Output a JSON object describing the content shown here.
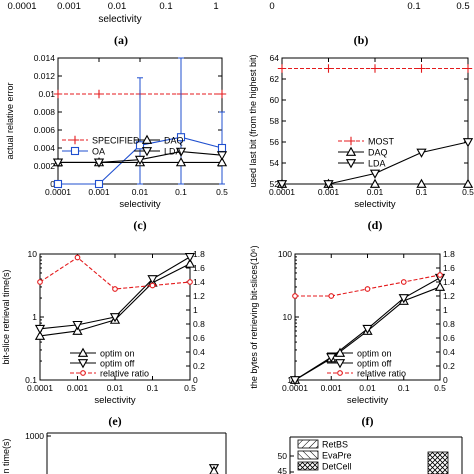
{
  "figure": {
    "top_strip": {
      "left_ticks": [
        "0.0001",
        "0.001",
        "0.01",
        "0.1",
        "1"
      ],
      "left_xlabel": "selectivity",
      "left_caption": "(a)",
      "right_ticks": [
        "0",
        "0.1",
        "0.5"
      ],
      "right_caption": "(b)"
    }
  },
  "chart_data": [
    {
      "id": "c",
      "type": "line",
      "caption": "(c)",
      "xlabel": "selectivity",
      "ylabel": "actual relative error",
      "categories": [
        "0.0001",
        "0.001",
        "0.01",
        "0.1",
        "0.5"
      ],
      "ylim": [
        0,
        0.014
      ],
      "yticks": [
        "0",
        "0.002",
        "0.004",
        "0.006",
        "0.008",
        "0.01",
        "0.012",
        "0.014"
      ],
      "legend_position": "center",
      "series": [
        {
          "name": "SPECIFIED",
          "values": [
            0.01,
            0.01,
            0.01,
            0.01,
            0.01
          ],
          "color": "#e41a1c",
          "dash": "dashed",
          "marker": "plus"
        },
        {
          "name": "OA",
          "values": [
            0.0,
            0.0,
            0.0043,
            0.0052,
            0.004
          ],
          "error": [
            0,
            0,
            0.0075,
            0.009,
            0.004
          ],
          "color": "#1f4fcf",
          "marker": "square"
        },
        {
          "name": "DAQ",
          "values": [
            0.0024,
            0.0024,
            0.0024,
            0.0024,
            0.0024
          ],
          "color": "#000000",
          "marker": "triangle-up"
        },
        {
          "name": "LDA",
          "values": [
            0.0024,
            0.0024,
            0.0027,
            0.0036,
            0.0032
          ],
          "color": "#000000",
          "marker": "triangle-down"
        }
      ]
    },
    {
      "id": "d",
      "type": "line",
      "caption": "(d)",
      "xlabel": "selectivity",
      "ylabel": "used last bit (from the highest bit)",
      "categories": [
        "0.0001",
        "0.001",
        "0.01",
        "0.1",
        "0.5"
      ],
      "ylim": [
        52,
        64
      ],
      "yticks": [
        "52",
        "54",
        "56",
        "58",
        "60",
        "62",
        "64"
      ],
      "legend_position": "center",
      "series": [
        {
          "name": "MOST",
          "values": [
            63,
            63,
            63,
            63,
            63
          ],
          "color": "#e41a1c",
          "dash": "dashed",
          "marker": "plus"
        },
        {
          "name": "DAQ",
          "values": [
            52,
            52,
            52,
            52,
            52
          ],
          "color": "#000000",
          "marker": "triangle-up"
        },
        {
          "name": "LDA",
          "values": [
            52,
            52,
            53,
            55,
            56
          ],
          "color": "#000000",
          "marker": "triangle-down"
        }
      ]
    },
    {
      "id": "e",
      "type": "line",
      "caption": "(e)",
      "xlabel": "selectivity",
      "ylabel": "bit-slice retrieval time(s)",
      "categories": [
        "0.0001",
        "0.001",
        "0.01",
        "0.1",
        "0.5"
      ],
      "y_scale": "log",
      "ylim": [
        0.1,
        10
      ],
      "yticks": [
        "0.1",
        "1",
        "10"
      ],
      "y2lim": [
        0,
        1.8
      ],
      "y2ticks": [
        "0",
        "0.2",
        "0.4",
        "0.6",
        "0.8",
        "1",
        "1.2",
        "1.4",
        "1.6",
        "1.8"
      ],
      "legend_position": "bottom-right",
      "series": [
        {
          "name": "optim on",
          "values": [
            0.5,
            0.6,
            0.9,
            3.5,
            7.0
          ],
          "axis": "left",
          "color": "#000000",
          "marker": "triangle-up"
        },
        {
          "name": "optim off",
          "values": [
            0.65,
            0.75,
            1.0,
            4.0,
            9.0
          ],
          "axis": "left",
          "color": "#000000",
          "marker": "triangle-down"
        },
        {
          "name": "relative ratio",
          "values": [
            1.4,
            1.75,
            1.3,
            1.35,
            1.4
          ],
          "axis": "right",
          "color": "#e41a1c",
          "dash": "dashed",
          "marker": "circle"
        }
      ]
    },
    {
      "id": "f",
      "type": "line",
      "caption": "(f)",
      "xlabel": "selectivity",
      "ylabel": "the bytes of retrieving bit-slices(10⁶)",
      "categories": [
        "0.0001",
        "0.001",
        "0.01",
        "0.1",
        "0.5"
      ],
      "y_scale": "log",
      "ylim": [
        1,
        100
      ],
      "yticks": [
        "1",
        "10",
        "100"
      ],
      "y2lim": [
        0,
        1.8
      ],
      "y2ticks": [
        "0",
        "0.2",
        "0.4",
        "0.6",
        "0.8",
        "1",
        "1.2",
        "1.4",
        "1.6",
        "1.8"
      ],
      "legend_position": "bottom-right",
      "series": [
        {
          "name": "optim on",
          "values": [
            1.0,
            2.2,
            6.0,
            18.0,
            30.0
          ],
          "axis": "left",
          "color": "#000000",
          "marker": "triangle-up"
        },
        {
          "name": "optim off",
          "values": [
            1.0,
            2.3,
            6.5,
            20.0,
            42.0
          ],
          "axis": "left",
          "color": "#000000",
          "marker": "triangle-down"
        },
        {
          "name": "relative ratio",
          "values": [
            1.2,
            1.2,
            1.3,
            1.4,
            1.5
          ],
          "axis": "right",
          "color": "#e41a1c",
          "dash": "dashed",
          "marker": "circle"
        }
      ]
    },
    {
      "id": "g",
      "type": "line",
      "partial": true,
      "ylabel_fragment": "n time(s)",
      "yticks": [
        "1000"
      ]
    },
    {
      "id": "h",
      "type": "bar",
      "partial": true,
      "yticks": [
        "50",
        "45"
      ],
      "legend": [
        "RetBS",
        "EvaPre",
        "DetCell"
      ]
    }
  ]
}
